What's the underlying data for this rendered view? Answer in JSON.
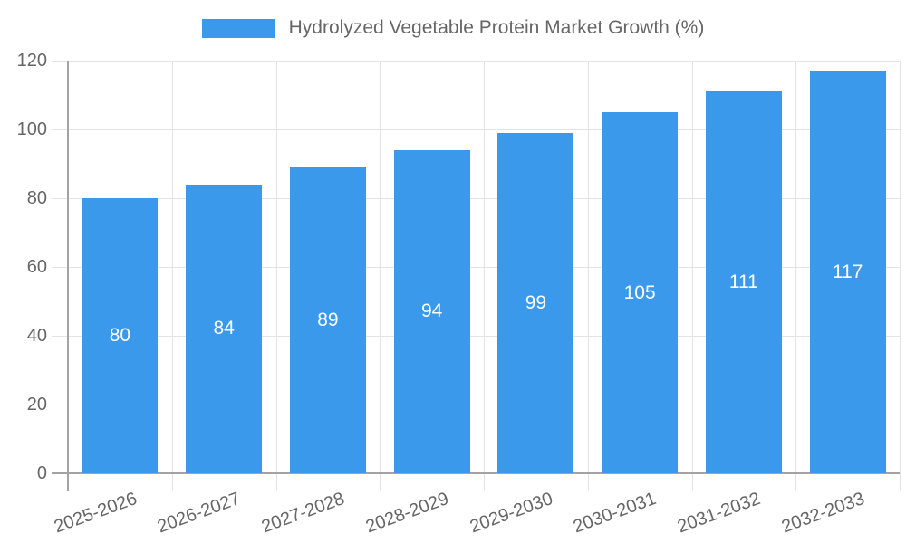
{
  "legend": {
    "label": "Hydrolyzed Vegetable Protein Market Growth (%)",
    "position": "top"
  },
  "chart_data": {
    "type": "bar",
    "title": "Hydrolyzed Vegetable Protein Market Growth (%)",
    "categories": [
      "2025-2026",
      "2026-2027",
      "2027-2028",
      "2028-2029",
      "2029-2030",
      "2030-2031",
      "2031-2032",
      "2032-2033"
    ],
    "values": [
      80,
      84,
      89,
      94,
      99,
      105,
      111,
      117
    ],
    "xlabel": "",
    "ylabel": "",
    "ylim": [
      0,
      120
    ],
    "yticks": [
      0,
      20,
      40,
      60,
      80,
      100,
      120
    ],
    "grid": true,
    "legend_position": "top",
    "bar_labels_shown": true,
    "x_label_rotation_deg": -20
  },
  "colors": {
    "bar": "#3b99ec",
    "axis": "#a3a3a3",
    "grid": "#e4e4e4",
    "tick_text": "#666666",
    "legend_text": "#666666",
    "bar_label": "#ffffff",
    "background": "#ffffff"
  }
}
